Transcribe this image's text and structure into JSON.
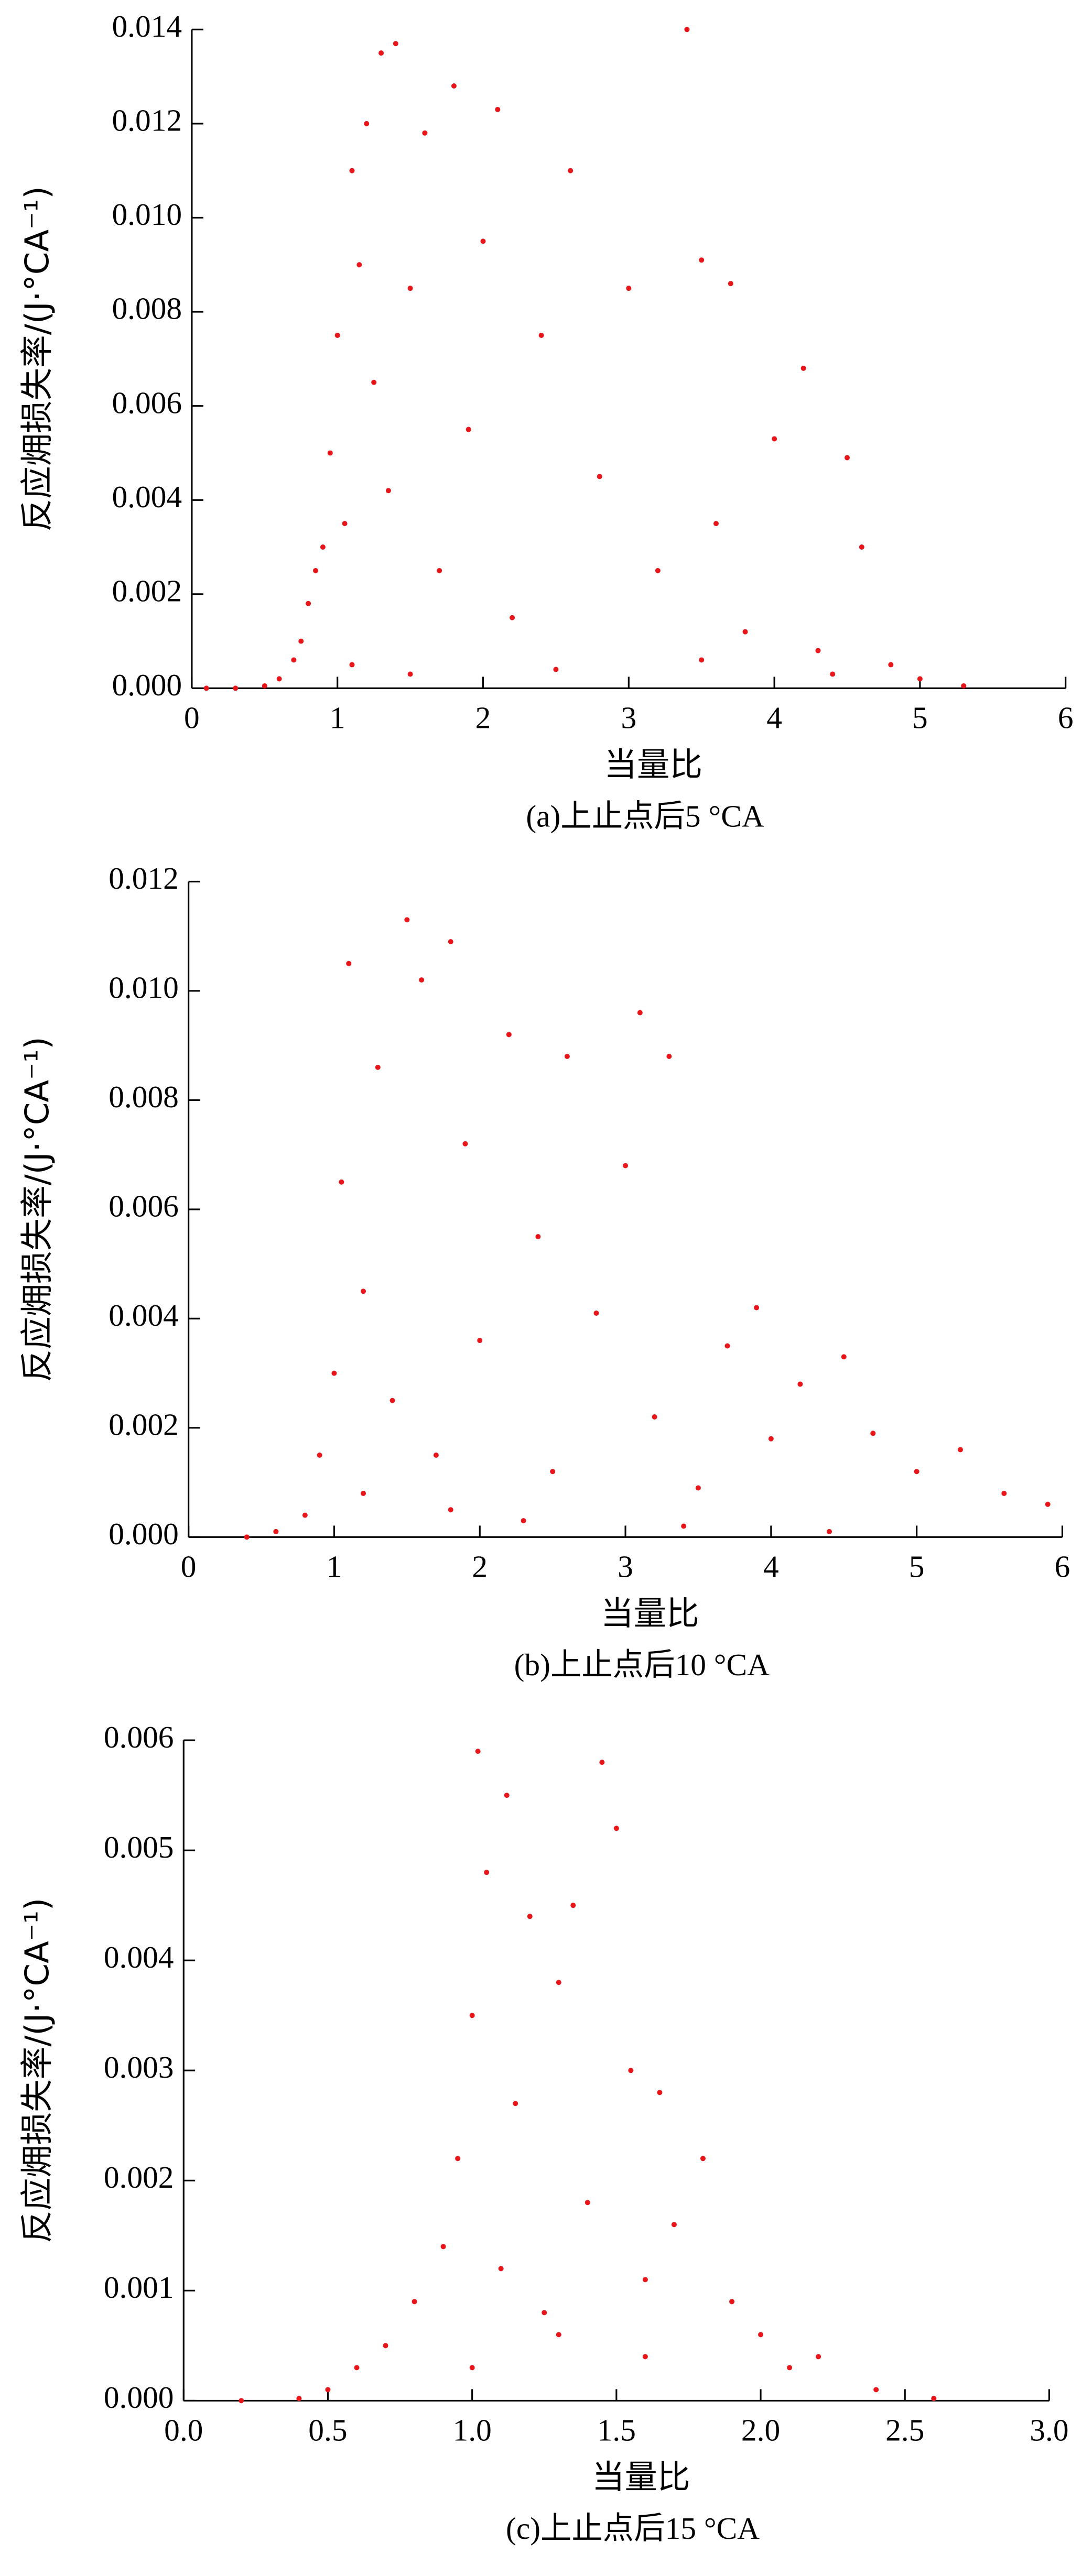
{
  "chart_data": [
    {
      "type": "scatter",
      "xlabel": "当量比",
      "ylabel": "反应㶲损失率/(J·°CA⁻¹)",
      "caption": "(a)上止点后5 °CA",
      "color": "#e8161b",
      "xlim": [
        0,
        6
      ],
      "xticks": [
        0,
        1,
        2,
        3,
        4,
        5,
        6
      ],
      "ylim": [
        0,
        0.014
      ],
      "yticks": [
        {
          "value": 0,
          "label": "0.000"
        },
        {
          "value": 0.002,
          "label": "0.002"
        },
        {
          "value": 0.004,
          "label": "0.004"
        },
        {
          "value": 0.006,
          "label": "0.006"
        },
        {
          "value": 0.008,
          "label": "0.008"
        },
        {
          "value": 0.01,
          "label": "0.010"
        },
        {
          "value": 0.012,
          "label": "0.012"
        },
        {
          "value": 0.014,
          "label": "0.014"
        }
      ],
      "x": [
        0.1,
        0.3,
        0.5,
        0.6,
        0.7,
        0.75,
        0.8,
        0.85,
        0.9,
        0.95,
        1.0,
        1.05,
        1.1,
        1.15,
        1.2,
        1.25,
        1.3,
        1.35,
        1.4,
        1.5,
        1.6,
        1.7,
        1.8,
        1.9,
        2.0,
        2.1,
        2.2,
        2.4,
        2.6,
        2.8,
        3.0,
        3.2,
        3.4,
        3.5,
        3.6,
        3.7,
        3.8,
        4.0,
        4.2,
        4.3,
        4.5,
        4.6,
        4.8,
        5.0,
        5.3,
        1.1,
        1.5,
        2.5,
        3.5,
        4.4
      ],
      "values": [
        0,
        0,
        5e-05,
        0.0002,
        0.0006,
        0.001,
        0.0018,
        0.0025,
        0.003,
        0.005,
        0.0075,
        0.0035,
        0.011,
        0.009,
        0.012,
        0.0065,
        0.0135,
        0.0042,
        0.0137,
        0.0085,
        0.0118,
        0.0025,
        0.0128,
        0.0055,
        0.0095,
        0.0123,
        0.0015,
        0.0075,
        0.011,
        0.0045,
        0.0085,
        0.0025,
        0.014,
        0.0091,
        0.0035,
        0.0086,
        0.0012,
        0.0053,
        0.0068,
        0.0008,
        0.0049,
        0.003,
        0.0005,
        0.0002,
        5e-05,
        0.0005,
        0.0003,
        0.0004,
        0.0006,
        0.0003
      ]
    },
    {
      "type": "scatter",
      "xlabel": "当量比",
      "ylabel": "反应㶲损失率/(J·°CA⁻¹)",
      "caption": "(b)上止点后10 °CA",
      "color": "#e8161b",
      "xlim": [
        0,
        6
      ],
      "xticks": [
        0,
        1,
        2,
        3,
        4,
        5,
        6
      ],
      "ylim": [
        0,
        0.012
      ],
      "yticks": [
        {
          "value": 0,
          "label": "0.000"
        },
        {
          "value": 0.002,
          "label": "0.002"
        },
        {
          "value": 0.004,
          "label": "0.004"
        },
        {
          "value": 0.006,
          "label": "0.006"
        },
        {
          "value": 0.008,
          "label": "0.008"
        },
        {
          "value": 0.01,
          "label": "0.010"
        },
        {
          "value": 0.012,
          "label": "0.012"
        }
      ],
      "x": [
        0.4,
        0.6,
        0.8,
        0.9,
        1.0,
        1.05,
        1.1,
        1.2,
        1.3,
        1.4,
        1.5,
        1.6,
        1.7,
        1.8,
        1.9,
        2.0,
        2.2,
        2.4,
        2.5,
        2.6,
        2.8,
        3.0,
        3.1,
        3.2,
        3.3,
        3.5,
        3.7,
        3.9,
        4.0,
        4.2,
        4.5,
        4.7,
        5.0,
        5.3,
        5.6,
        5.9,
        1.2,
        1.8,
        2.3,
        3.4,
        4.4
      ],
      "values": [
        0,
        0.0001,
        0.0004,
        0.0015,
        0.003,
        0.0065,
        0.0105,
        0.0045,
        0.0086,
        0.0025,
        0.0113,
        0.0102,
        0.0015,
        0.0109,
        0.0072,
        0.0036,
        0.0092,
        0.0055,
        0.0012,
        0.0088,
        0.0041,
        0.0068,
        0.0096,
        0.0022,
        0.0088,
        0.0009,
        0.0035,
        0.0042,
        0.0018,
        0.0028,
        0.0033,
        0.0019,
        0.0012,
        0.0016,
        0.0008,
        0.0006,
        0.0008,
        0.0005,
        0.0003,
        0.0002,
        0.0001
      ]
    },
    {
      "type": "scatter",
      "xlabel": "当量比",
      "ylabel": "反应㶲损失率/(J·°CA⁻¹)",
      "caption": "(c)上止点后15 °CA",
      "color": "#e8161b",
      "xlim": [
        0,
        3
      ],
      "xticks": [
        {
          "value": 0,
          "label": "0.0"
        },
        {
          "value": 0.5,
          "label": "0.5"
        },
        {
          "value": 1,
          "label": "1.0"
        },
        {
          "value": 1.5,
          "label": "1.5"
        },
        {
          "value": 2,
          "label": "2.0"
        },
        {
          "value": 2.5,
          "label": "2.5"
        },
        {
          "value": 3,
          "label": "3.0"
        }
      ],
      "ylim": [
        0,
        0.006
      ],
      "yticks": [
        {
          "value": 0,
          "label": "0.000"
        },
        {
          "value": 0.001,
          "label": "0.001"
        },
        {
          "value": 0.002,
          "label": "0.002"
        },
        {
          "value": 0.003,
          "label": "0.003"
        },
        {
          "value": 0.004,
          "label": "0.004"
        },
        {
          "value": 0.005,
          "label": "0.005"
        },
        {
          "value": 0.006,
          "label": "0.006"
        }
      ],
      "x": [
        0.2,
        0.4,
        0.5,
        0.6,
        0.7,
        0.8,
        0.9,
        0.95,
        1.0,
        1.02,
        1.05,
        1.1,
        1.12,
        1.15,
        1.2,
        1.25,
        1.3,
        1.35,
        1.4,
        1.45,
        1.5,
        1.55,
        1.6,
        1.65,
        1.7,
        1.8,
        1.9,
        2.0,
        2.1,
        2.2,
        2.4,
        2.6,
        1.0,
        1.3,
        1.6
      ],
      "values": [
        0,
        2e-05,
        0.0001,
        0.0003,
        0.0005,
        0.0009,
        0.0014,
        0.0022,
        0.0035,
        0.0059,
        0.0048,
        0.0012,
        0.0055,
        0.0027,
        0.0044,
        0.0008,
        0.0038,
        0.0045,
        0.0018,
        0.0058,
        0.0052,
        0.003,
        0.0011,
        0.0028,
        0.0016,
        0.0022,
        0.0009,
        0.0006,
        0.0003,
        0.0004,
        0.0001,
        2e-05,
        0.0003,
        0.0006,
        0.0004
      ]
    }
  ]
}
